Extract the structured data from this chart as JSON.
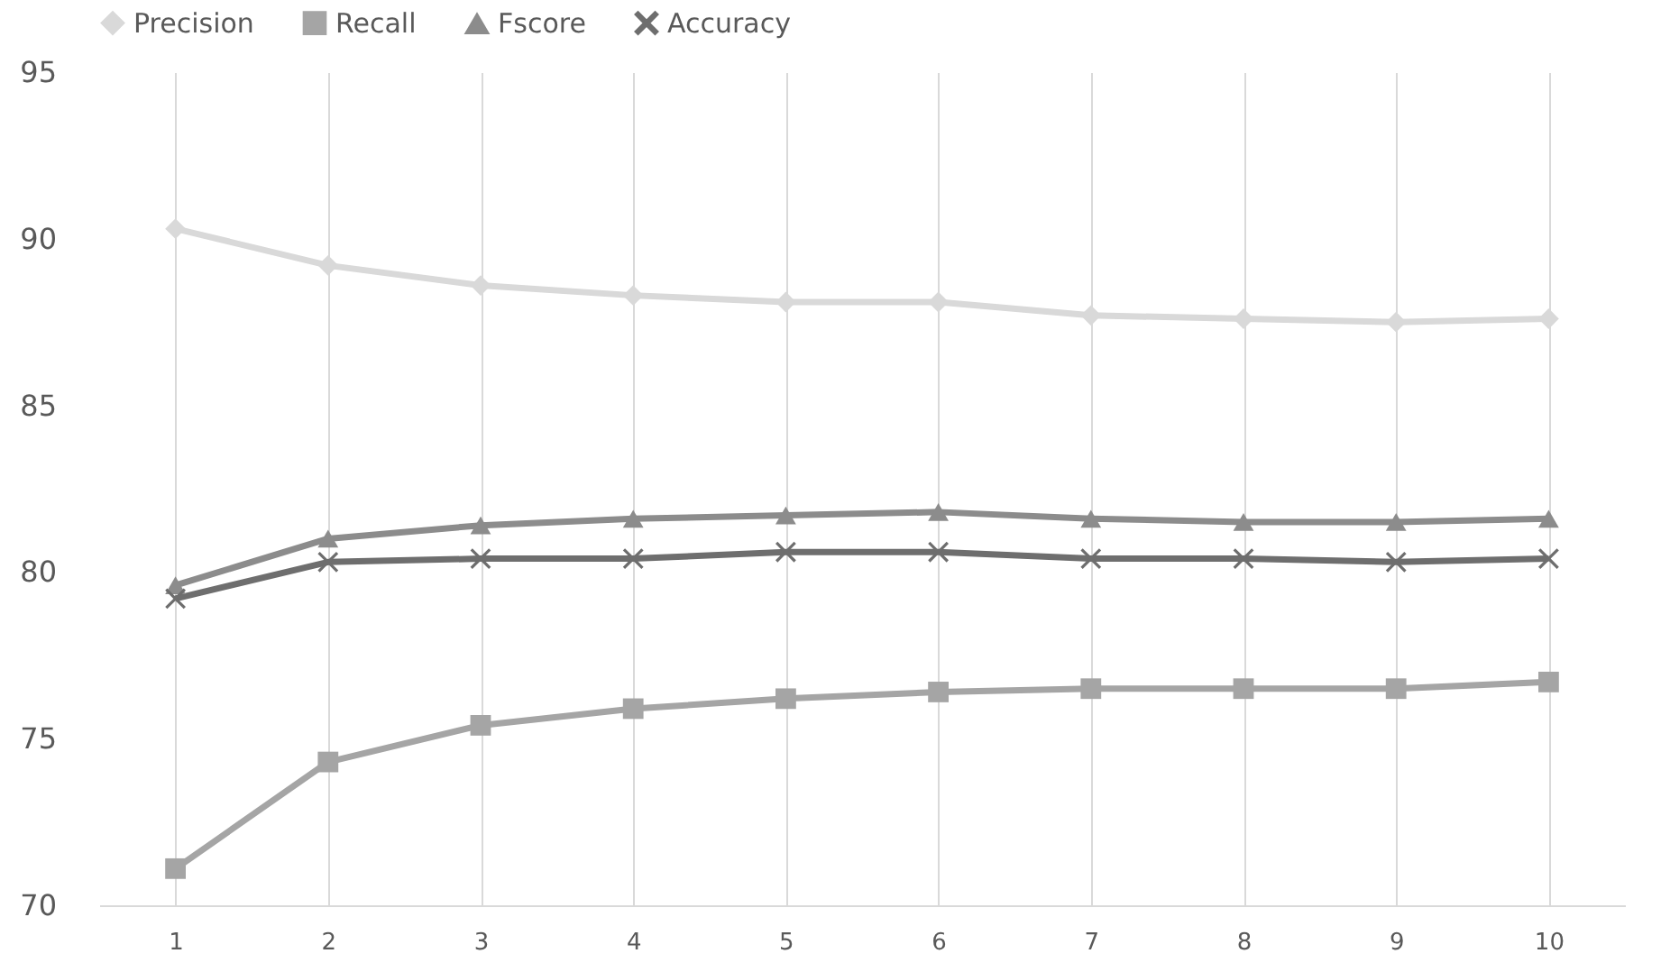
{
  "chart_data": {
    "type": "line",
    "categories": [
      "1",
      "2",
      "3",
      "4",
      "5",
      "6",
      "7",
      "8",
      "9",
      "10"
    ],
    "series": [
      {
        "name": "Precision",
        "color": "#d9d9d9",
        "marker": "diamond",
        "values": [
          90.3,
          89.2,
          88.6,
          88.3,
          88.1,
          88.1,
          87.7,
          87.6,
          87.5,
          87.6
        ]
      },
      {
        "name": "Recall",
        "color": "#a5a5a5",
        "marker": "square",
        "values": [
          71.1,
          74.3,
          75.4,
          75.9,
          76.2,
          76.4,
          76.5,
          76.5,
          76.5,
          76.7
        ]
      },
      {
        "name": "Fscore",
        "color": "#8c8c8c",
        "marker": "triangle",
        "values": [
          79.6,
          81.0,
          81.4,
          81.6,
          81.7,
          81.8,
          81.6,
          81.5,
          81.5,
          81.6
        ]
      },
      {
        "name": "Accuracy",
        "color": "#6e6e6e",
        "marker": "cross",
        "values": [
          79.2,
          80.3,
          80.4,
          80.4,
          80.6,
          80.6,
          80.4,
          80.4,
          80.3,
          80.4
        ]
      }
    ],
    "ylim": [
      70,
      95
    ],
    "yticks": [
      70,
      75,
      80,
      85,
      90,
      95
    ],
    "grid": "x",
    "legend": "top",
    "line_style": "solid"
  }
}
